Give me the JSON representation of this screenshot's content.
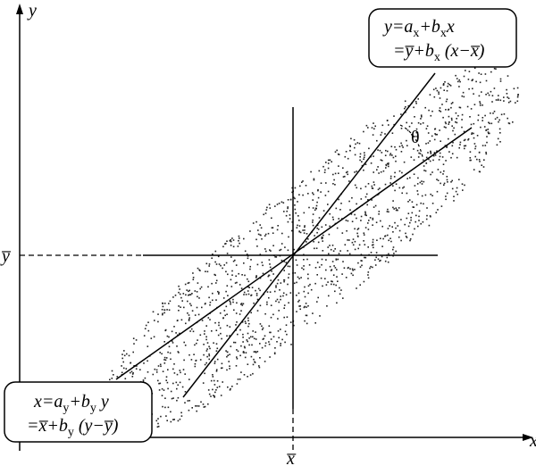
{
  "axes": {
    "y_label": "y",
    "x_label": "x",
    "y_mean": "y̅",
    "x_mean": "x̅"
  },
  "angle_label": "θ",
  "regression_y_on_x": {
    "line1": [
      {
        "text": "y=a"
      },
      {
        "text": "x",
        "sub": true
      },
      {
        "text": "+b"
      },
      {
        "text": "x",
        "sub": true
      },
      {
        "text": "x"
      }
    ],
    "line2": [
      {
        "text": "=y̅+b"
      },
      {
        "text": "x",
        "sub": true
      },
      {
        "text": " (x−x̅)"
      }
    ]
  },
  "regression_x_on_y": {
    "line1": [
      {
        "text": "x=a"
      },
      {
        "text": "y",
        "sub": true
      },
      {
        "text": "+b"
      },
      {
        "text": "y",
        "sub": true
      },
      {
        "text": " y"
      }
    ],
    "line2": [
      {
        "text": "=x̅+b"
      },
      {
        "text": "y",
        "sub": true
      },
      {
        "text": " (y−y̅)"
      }
    ]
  }
}
